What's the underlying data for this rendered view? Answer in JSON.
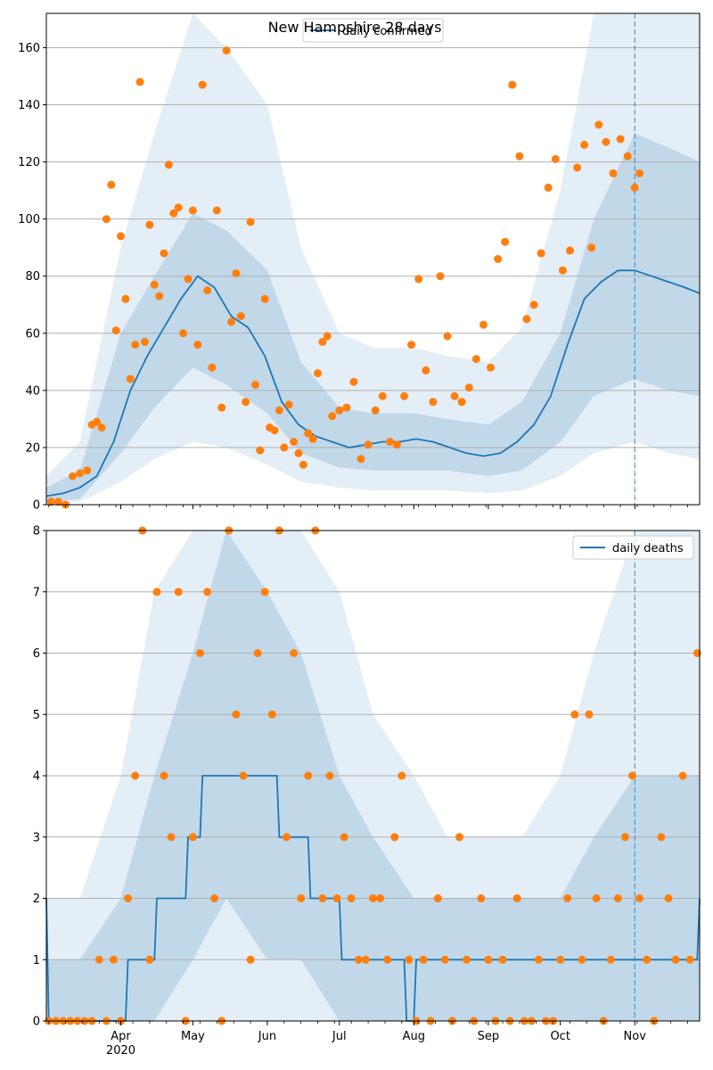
{
  "figure": {
    "title": "New Hampshire 28 days"
  },
  "colors": {
    "line": "#1f77b4",
    "points": "#ff7f0e",
    "band": "#1f77b4",
    "grid": "#b0b0b0",
    "marker_line": "#1f77b4"
  },
  "chart_data": [
    {
      "type": "line",
      "title": "New Hampshire 28 days",
      "xlabel": "",
      "ylabel": "",
      "x_unit": "date",
      "xlim": [
        "2020-03-01",
        "2020-11-28"
      ],
      "ylim": [
        0,
        172
      ],
      "yticks": [
        0,
        20,
        40,
        60,
        80,
        100,
        120,
        140,
        160
      ],
      "xtick_labels": [
        "Apr\n2020",
        "May",
        "Jun",
        "Jul",
        "Aug",
        "Sep",
        "Oct",
        "Nov"
      ],
      "xtick_dates": [
        "2020-04-01",
        "2020-05-01",
        "2020-06-01",
        "2020-07-01",
        "2020-08-01",
        "2020-09-01",
        "2020-10-01",
        "2020-11-01"
      ],
      "grid": "horizontal",
      "legend": {
        "placement": "top-center",
        "entries": [
          "daily confirmed"
        ]
      },
      "forecast_start": "2020-11-01",
      "series": [
        {
          "name": "daily confirmed",
          "kind": "line",
          "x": [
            "2020-03-01",
            "2020-03-08",
            "2020-03-15",
            "2020-03-22",
            "2020-03-29",
            "2020-04-05",
            "2020-04-12",
            "2020-04-19",
            "2020-04-26",
            "2020-05-03",
            "2020-05-10",
            "2020-05-17",
            "2020-05-24",
            "2020-05-31",
            "2020-06-07",
            "2020-06-14",
            "2020-06-21",
            "2020-06-28",
            "2020-07-05",
            "2020-07-12",
            "2020-07-19",
            "2020-07-26",
            "2020-08-02",
            "2020-08-09",
            "2020-08-16",
            "2020-08-23",
            "2020-08-30",
            "2020-09-06",
            "2020-09-13",
            "2020-09-20",
            "2020-09-27",
            "2020-10-04",
            "2020-10-11",
            "2020-10-18",
            "2020-10-25",
            "2020-11-01",
            "2020-11-08",
            "2020-11-15",
            "2020-11-22",
            "2020-11-28"
          ],
          "values": [
            3,
            4,
            6,
            10,
            22,
            40,
            52,
            62,
            72,
            80,
            76,
            66,
            62,
            52,
            36,
            28,
            24,
            22,
            20,
            21,
            22,
            22,
            23,
            22,
            20,
            18,
            17,
            18,
            22,
            28,
            38,
            56,
            72,
            78,
            82,
            82,
            80,
            78,
            76,
            74
          ]
        },
        {
          "name": "",
          "kind": "band",
          "x": [
            "2020-03-01",
            "2020-03-15",
            "2020-04-01",
            "2020-04-15",
            "2020-05-01",
            "2020-05-15",
            "2020-06-01",
            "2020-06-15",
            "2020-07-01",
            "2020-07-15",
            "2020-08-01",
            "2020-08-15",
            "2020-09-01",
            "2020-09-15",
            "2020-10-01",
            "2020-10-15",
            "2020-11-01",
            "2020-11-15",
            "2020-11-28"
          ],
          "inner_lower": [
            1,
            2,
            18,
            34,
            48,
            42,
            32,
            18,
            13,
            12,
            12,
            12,
            10,
            12,
            22,
            38,
            44,
            40,
            38
          ],
          "inner_upper": [
            6,
            12,
            60,
            80,
            102,
            96,
            82,
            50,
            34,
            32,
            32,
            30,
            28,
            36,
            60,
            100,
            130,
            125,
            120
          ],
          "outer_lower": [
            0,
            1,
            8,
            16,
            22,
            20,
            14,
            8,
            6,
            5,
            5,
            5,
            4,
            5,
            10,
            18,
            22,
            18,
            16
          ],
          "outer_upper": [
            10,
            22,
            90,
            130,
            172,
            160,
            140,
            90,
            60,
            55,
            55,
            52,
            50,
            62,
            110,
            172,
            172,
            172,
            172
          ]
        },
        {
          "name": "",
          "kind": "scatter",
          "x": [
            "2020-03-03",
            "2020-03-06",
            "2020-03-09",
            "2020-03-12",
            "2020-03-15",
            "2020-03-18",
            "2020-03-20",
            "2020-03-22",
            "2020-03-24",
            "2020-03-26",
            "2020-03-28",
            "2020-03-30",
            "2020-04-01",
            "2020-04-03",
            "2020-04-05",
            "2020-04-07",
            "2020-04-09",
            "2020-04-11",
            "2020-04-13",
            "2020-04-15",
            "2020-04-17",
            "2020-04-19",
            "2020-04-21",
            "2020-04-23",
            "2020-04-25",
            "2020-04-27",
            "2020-04-29",
            "2020-05-01",
            "2020-05-03",
            "2020-05-05",
            "2020-05-07",
            "2020-05-09",
            "2020-05-11",
            "2020-05-13",
            "2020-05-15",
            "2020-05-17",
            "2020-05-19",
            "2020-05-21",
            "2020-05-23",
            "2020-05-25",
            "2020-05-27",
            "2020-05-29",
            "2020-05-31",
            "2020-06-02",
            "2020-06-04",
            "2020-06-06",
            "2020-06-08",
            "2020-06-10",
            "2020-06-12",
            "2020-06-14",
            "2020-06-16",
            "2020-06-18",
            "2020-06-20",
            "2020-06-22",
            "2020-06-24",
            "2020-06-26",
            "2020-06-28",
            "2020-07-01",
            "2020-07-04",
            "2020-07-07",
            "2020-07-10",
            "2020-07-13",
            "2020-07-16",
            "2020-07-19",
            "2020-07-22",
            "2020-07-25",
            "2020-07-28",
            "2020-07-31",
            "2020-08-03",
            "2020-08-06",
            "2020-08-09",
            "2020-08-12",
            "2020-08-15",
            "2020-08-18",
            "2020-08-21",
            "2020-08-24",
            "2020-08-27",
            "2020-08-30",
            "2020-09-02",
            "2020-09-05",
            "2020-09-08",
            "2020-09-11",
            "2020-09-14",
            "2020-09-17",
            "2020-09-20",
            "2020-09-23",
            "2020-09-26",
            "2020-09-29",
            "2020-10-02",
            "2020-10-05",
            "2020-10-08",
            "2020-10-11",
            "2020-10-14",
            "2020-10-17",
            "2020-10-20",
            "2020-10-23",
            "2020-10-26",
            "2020-10-29",
            "2020-11-01",
            "2020-11-03"
          ],
          "values": [
            1,
            1,
            0,
            10,
            11,
            12,
            28,
            29,
            27,
            100,
            112,
            61,
            94,
            72,
            44,
            56,
            148,
            57,
            98,
            77,
            73,
            88,
            119,
            102,
            104,
            60,
            79,
            103,
            56,
            147,
            75,
            48,
            103,
            34,
            159,
            64,
            81,
            66,
            36,
            99,
            42,
            19,
            72,
            27,
            26,
            33,
            20,
            35,
            22,
            18,
            14,
            25,
            23,
            46,
            57,
            59,
            31,
            33,
            34,
            43,
            16,
            21,
            33,
            38,
            22,
            21,
            38,
            56,
            79,
            47,
            36,
            80,
            59,
            38,
            36,
            41,
            51,
            63,
            48,
            86,
            92,
            147,
            122,
            65,
            70,
            88,
            111,
            121,
            82,
            89,
            118,
            126,
            90,
            133,
            127,
            116,
            128,
            122,
            111,
            116
          ]
        }
      ]
    },
    {
      "type": "line",
      "title": "",
      "xlabel": "",
      "ylabel": "",
      "x_unit": "date",
      "xlim": [
        "2020-03-01",
        "2020-11-28"
      ],
      "ylim": [
        0,
        8
      ],
      "yticks": [
        0,
        1,
        2,
        3,
        4,
        5,
        6,
        7,
        8
      ],
      "xtick_labels": [
        "Apr\n2020",
        "May",
        "Jun",
        "Jul",
        "Aug",
        "Sep",
        "Oct",
        "Nov"
      ],
      "xtick_dates": [
        "2020-04-01",
        "2020-05-01",
        "2020-06-01",
        "2020-07-01",
        "2020-08-01",
        "2020-09-01",
        "2020-10-01",
        "2020-11-01"
      ],
      "grid": "horizontal",
      "legend": {
        "placement": "top-right",
        "entries": [
          "daily deaths"
        ]
      },
      "forecast_start": "2020-11-01",
      "series": [
        {
          "name": "daily deaths",
          "kind": "line",
          "x": [
            "2020-03-01",
            "2020-03-02",
            "2020-04-03",
            "2020-04-04",
            "2020-04-15",
            "2020-04-16",
            "2020-04-28",
            "2020-04-29",
            "2020-05-04",
            "2020-05-05",
            "2020-06-05",
            "2020-06-06",
            "2020-06-18",
            "2020-06-19",
            "2020-07-01",
            "2020-07-02",
            "2020-07-28",
            "2020-07-29",
            "2020-08-01",
            "2020-08-02",
            "2020-10-03",
            "2020-10-04",
            "2020-11-27",
            "2020-11-28"
          ],
          "values": [
            2,
            0,
            0,
            1,
            1,
            2,
            2,
            3,
            3,
            4,
            4,
            3,
            3,
            2,
            2,
            1,
            1,
            0,
            0,
            1,
            1,
            1,
            1,
            2
          ]
        },
        {
          "name": "",
          "kind": "band",
          "x": [
            "2020-03-01",
            "2020-03-15",
            "2020-04-01",
            "2020-04-15",
            "2020-05-01",
            "2020-05-15",
            "2020-06-01",
            "2020-06-15",
            "2020-07-01",
            "2020-07-15",
            "2020-08-01",
            "2020-08-15",
            "2020-09-01",
            "2020-09-15",
            "2020-10-01",
            "2020-10-15",
            "2020-11-01",
            "2020-11-15",
            "2020-11-28"
          ],
          "inner_lower": [
            0,
            0,
            0,
            0,
            1,
            2,
            1,
            1,
            0,
            0,
            0,
            0,
            0,
            0,
            0,
            0,
            0,
            0,
            0
          ],
          "inner_upper": [
            1,
            1,
            2,
            4,
            6,
            8,
            7,
            6,
            4,
            3,
            2,
            2,
            2,
            2,
            2,
            3,
            4,
            4,
            4
          ],
          "outer_lower": [
            0,
            0,
            0,
            0,
            0,
            0,
            0,
            0,
            0,
            0,
            0,
            0,
            0,
            0,
            0,
            0,
            0,
            0,
            0
          ],
          "outer_upper": [
            2,
            2,
            4,
            7,
            8,
            8,
            8,
            8,
            7,
            5,
            4,
            3,
            3,
            3,
            4,
            6,
            8,
            8,
            8
          ]
        },
        {
          "name": "",
          "kind": "scatter",
          "x": [
            "2020-03-02",
            "2020-03-05",
            "2020-03-08",
            "2020-03-11",
            "2020-03-14",
            "2020-03-17",
            "2020-03-20",
            "2020-03-23",
            "2020-03-26",
            "2020-03-29",
            "2020-04-01",
            "2020-04-04",
            "2020-04-07",
            "2020-04-10",
            "2020-04-13",
            "2020-04-16",
            "2020-04-19",
            "2020-04-22",
            "2020-04-25",
            "2020-04-28",
            "2020-05-01",
            "2020-05-04",
            "2020-05-07",
            "2020-05-10",
            "2020-05-13",
            "2020-05-16",
            "2020-05-19",
            "2020-05-22",
            "2020-05-25",
            "2020-05-28",
            "2020-05-31",
            "2020-06-03",
            "2020-06-06",
            "2020-06-09",
            "2020-06-12",
            "2020-06-15",
            "2020-06-18",
            "2020-06-21",
            "2020-06-24",
            "2020-06-27",
            "2020-06-30",
            "2020-07-03",
            "2020-07-06",
            "2020-07-09",
            "2020-07-12",
            "2020-07-15",
            "2020-07-18",
            "2020-07-21",
            "2020-07-24",
            "2020-07-27",
            "2020-07-30",
            "2020-08-02",
            "2020-08-05",
            "2020-08-08",
            "2020-08-11",
            "2020-08-14",
            "2020-08-17",
            "2020-08-20",
            "2020-08-23",
            "2020-08-26",
            "2020-08-29",
            "2020-09-01",
            "2020-09-04",
            "2020-09-07",
            "2020-09-10",
            "2020-09-13",
            "2020-09-16",
            "2020-09-19",
            "2020-09-22",
            "2020-09-25",
            "2020-09-28",
            "2020-10-01",
            "2020-10-04",
            "2020-10-07",
            "2020-10-10",
            "2020-10-13",
            "2020-10-16",
            "2020-10-19",
            "2020-10-22",
            "2020-10-25",
            "2020-10-28",
            "2020-10-31",
            "2020-11-03",
            "2020-11-06",
            "2020-11-09",
            "2020-11-12",
            "2020-11-15",
            "2020-11-18",
            "2020-11-21",
            "2020-11-24",
            "2020-11-27"
          ],
          "values": [
            0,
            0,
            0,
            0,
            0,
            0,
            0,
            1,
            0,
            1,
            0,
            2,
            4,
            8,
            1,
            7,
            4,
            3,
            7,
            0,
            3,
            6,
            7,
            2,
            0,
            8,
            5,
            4,
            1,
            6,
            7,
            5,
            8,
            3,
            6,
            2,
            4,
            8,
            2,
            4,
            2,
            3,
            2,
            1,
            1,
            2,
            2,
            1,
            3,
            4,
            1,
            0,
            1,
            0,
            2,
            1,
            0,
            3,
            1,
            0,
            2,
            1,
            0,
            1,
            0,
            2,
            0,
            0,
            1,
            0,
            0,
            1,
            2,
            5,
            1,
            5,
            2,
            0,
            1,
            2,
            3,
            4,
            2,
            1,
            0,
            3,
            2,
            1,
            4,
            1,
            6
          ]
        }
      ]
    }
  ]
}
